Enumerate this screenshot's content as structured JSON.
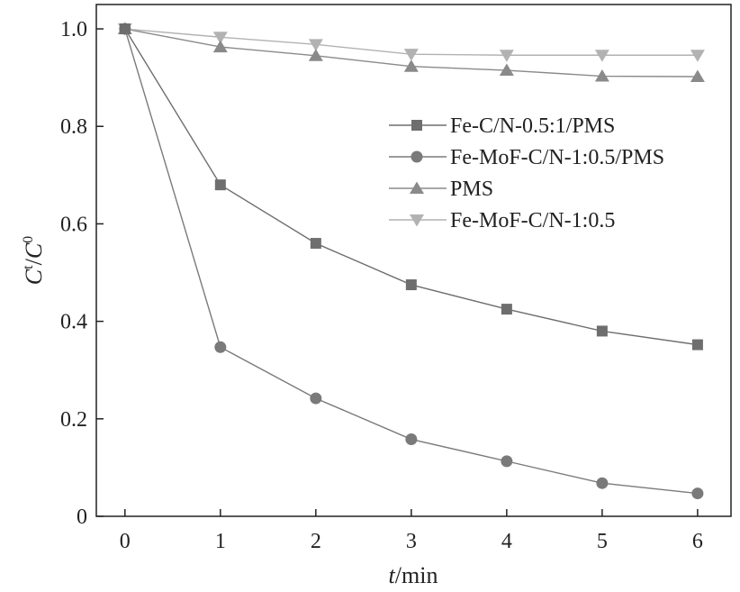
{
  "chart_data": {
    "type": "line",
    "xlabel_var": "t",
    "xlabel_unit": "/min",
    "ylabel_num": "C",
    "ylabel_num_sup": "t",
    "ylabel_sep": "/",
    "ylabel_den": "C",
    "ylabel_den_sup": "0",
    "xlim": [
      -0.3,
      6.35
    ],
    "ylim": [
      0,
      1.05
    ],
    "x_ticks": [
      0,
      1,
      2,
      3,
      4,
      5,
      6
    ],
    "x_tick_labels": [
      "0",
      "1",
      "2",
      "3",
      "4",
      "5",
      "6"
    ],
    "y_ticks": [
      0,
      0.2,
      0.4,
      0.6,
      0.8,
      1.0
    ],
    "y_tick_labels": [
      "0",
      "0.2",
      "0.4",
      "0.6",
      "0.8",
      "1.0"
    ],
    "grid": false,
    "legend_position": "right",
    "x": [
      0,
      1,
      2,
      3,
      4,
      5,
      6
    ],
    "series": [
      {
        "name": "Fe-C/N-0.5:1/PMS",
        "marker": "square",
        "color": "#6e6e6e",
        "values": [
          1.0,
          0.68,
          0.56,
          0.475,
          0.425,
          0.38,
          0.352
        ]
      },
      {
        "name": "Fe-MoF-C/N-1:0.5/PMS",
        "marker": "circle",
        "color": "#7a7a7a",
        "values": [
          1.0,
          0.347,
          0.242,
          0.158,
          0.113,
          0.068,
          0.047
        ]
      },
      {
        "name": "PMS",
        "marker": "triangle-up",
        "color": "#8a8a8a",
        "values": [
          1.0,
          0.963,
          0.945,
          0.923,
          0.915,
          0.903,
          0.902
        ]
      },
      {
        "name": "Fe-MoF-C/N-1:0.5",
        "marker": "triangle-down",
        "color": "#b2b2b2",
        "values": [
          1.0,
          0.983,
          0.968,
          0.948,
          0.946,
          0.946,
          0.946
        ]
      }
    ]
  }
}
